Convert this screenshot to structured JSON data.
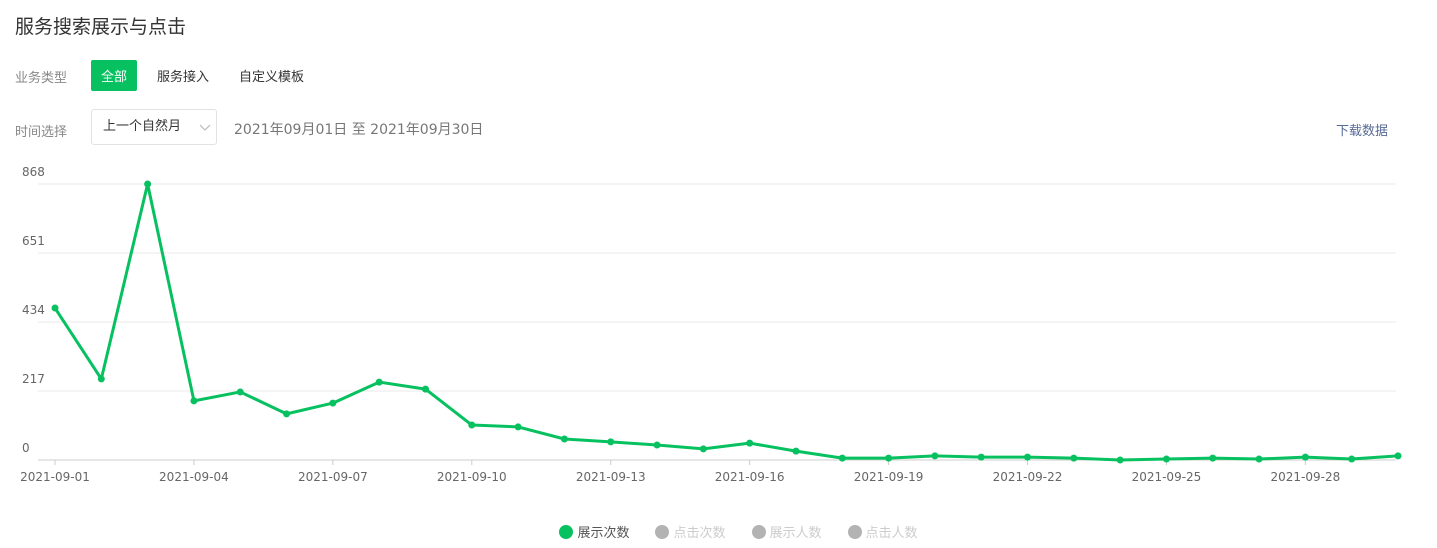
{
  "header": {
    "title": "服务搜索展示与点击"
  },
  "filters": {
    "business_type": {
      "label": "业务类型",
      "options": [
        "全部",
        "服务接入",
        "自定义模板"
      ],
      "active": 0
    },
    "time": {
      "label": "时间选择",
      "select": "上一个自然月",
      "range": "2021年09月01日 至 2021年09月30日"
    },
    "download": "下载数据"
  },
  "chart_data": {
    "type": "line",
    "categories": [
      "2021-09-01",
      null,
      null,
      "2021-09-04",
      null,
      null,
      "2021-09-07",
      null,
      null,
      "2021-09-10",
      null,
      null,
      "2021-09-13",
      null,
      null,
      "2021-09-16",
      null,
      null,
      "2021-09-19",
      null,
      null,
      "2021-09-22",
      null,
      null,
      "2021-09-25",
      null,
      null,
      "2021-09-28",
      null,
      null
    ],
    "series": [
      {
        "name": "展示次数",
        "color": "#07c160",
        "values": [
          478,
          255,
          868,
          186,
          214,
          145,
          179,
          245,
          223,
          110,
          104,
          66,
          57,
          47,
          35,
          53,
          28,
          6,
          6,
          13,
          9,
          9,
          6,
          0,
          3,
          6,
          3,
          9,
          3,
          13
        ]
      }
    ],
    "inactive_series": [
      {
        "name": "点击次数",
        "color": "#b3b3b3"
      },
      {
        "name": "展示人数",
        "color": "#b3b3b3"
      },
      {
        "name": "点击人数",
        "color": "#b3b3b3"
      }
    ],
    "ylim": [
      0,
      868
    ],
    "yticks": [
      0,
      217,
      434,
      651,
      868
    ],
    "grid": true
  }
}
